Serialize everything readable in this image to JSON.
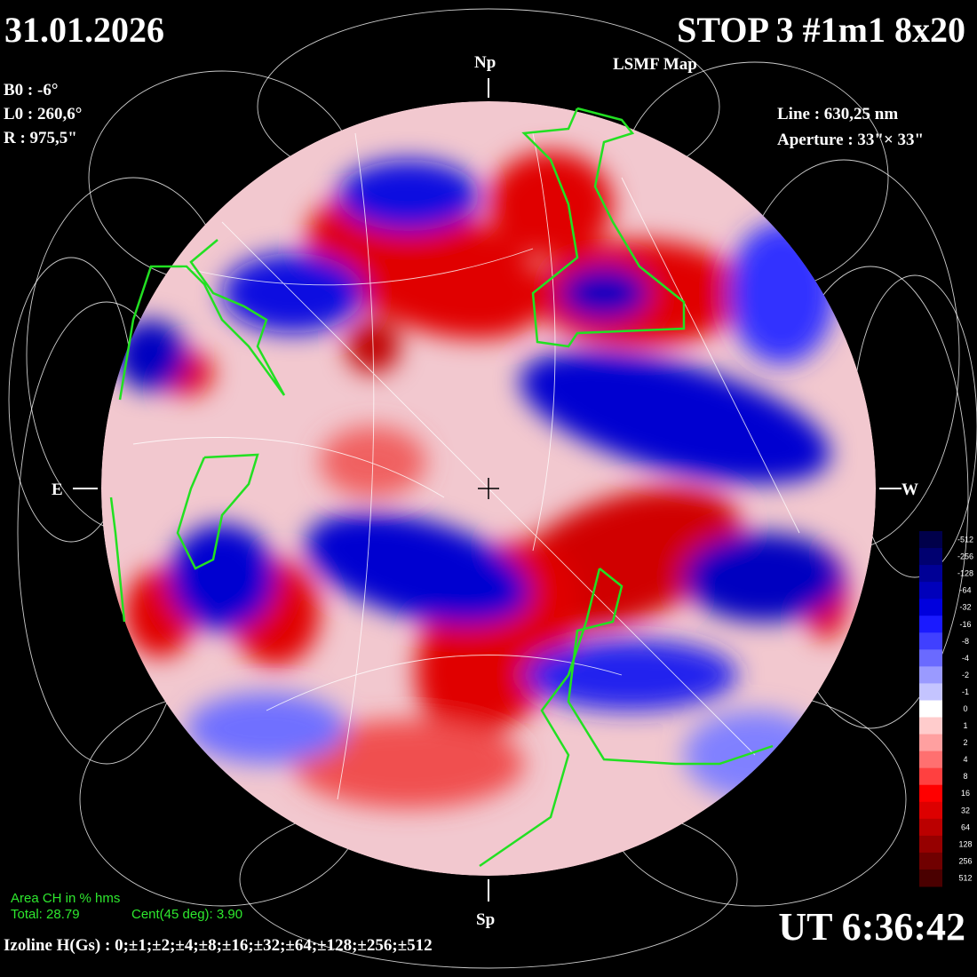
{
  "header": {
    "date": "31.01.2026",
    "title": "STOP 3 #1m1 8x20",
    "map_type": "LSMF  Map"
  },
  "parameters": {
    "b0": "B0 : -6°",
    "l0": "L0 : 260,6°",
    "r": "R  : 975,5\""
  },
  "instrument": {
    "line": "Line :  630,25 nm",
    "aperture": "Aperture : 33\"× 33\""
  },
  "orientation": {
    "north": "Np",
    "south": "Sp",
    "east": "E",
    "west": "W"
  },
  "coronal_holes": {
    "heading": "Area CH in % hms",
    "total": "Total: 28.79",
    "central": "Cent(45 deg): 3.90"
  },
  "isolines": "Izoline H(Gs) : 0;±1;±2;±4;±8;±16;±32;±64;±128;±256;±512",
  "time": "UT 6:36:42",
  "colorbar": {
    "labels": [
      "-512",
      "-256",
      "-128",
      "-64",
      "-32",
      "-16",
      "-8",
      "-4",
      "-2",
      "-1",
      "0",
      "1",
      "2",
      "4",
      "8",
      "16",
      "32",
      "64",
      "128",
      "256",
      "512"
    ],
    "colors": [
      "#00004a",
      "#000070",
      "#000096",
      "#0000bb",
      "#0000dd",
      "#1a1aff",
      "#4040ff",
      "#6a6aff",
      "#9a9aff",
      "#c4c4ff",
      "#ffffff",
      "#ffcccc",
      "#ffa0a0",
      "#ff7070",
      "#ff4040",
      "#ff0000",
      "#dd0000",
      "#bb0000",
      "#960000",
      "#700000",
      "#4a0000"
    ]
  }
}
